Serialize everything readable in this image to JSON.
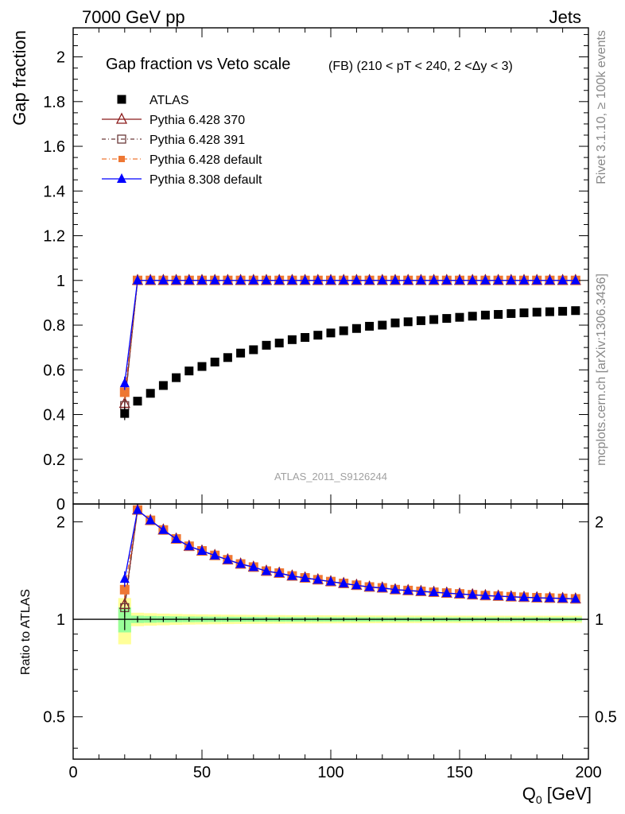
{
  "header": {
    "left": "7000 GeV pp",
    "right": "Jets"
  },
  "side_labels": {
    "rivet": "Rivet 3.1.10, ≥ 100k events",
    "mcplots": "mcplots.cern.ch [arXiv:1306.3436]"
  },
  "chart_data": {
    "type": "scatter",
    "title": "Gap fraction vs Veto scale",
    "subtitle": "(FB) (210 < pT < 240, 2 <Δy < 3)",
    "analysis": "ATLAS_2011_S9126244",
    "xlabel": "Q",
    "xlabel_sub": "0",
    "xlabel_unit": " [GeV]",
    "ylabel": "Gap fraction",
    "ratio_ylabel": "Ratio to ATLAS",
    "xlim": [
      0,
      200
    ],
    "ylim": [
      0,
      2.13
    ],
    "ratio_ylim": [
      0.37,
      2.27
    ],
    "x_ticks": [
      0,
      50,
      100,
      150,
      200
    ],
    "y_ticks": [
      0,
      0.2,
      0.4,
      0.6,
      0.8,
      1,
      1.2,
      1.4,
      1.6,
      1.8,
      2
    ],
    "y_tick_labels": [
      "0",
      "0.2",
      "0.4",
      "0.6",
      "0.8",
      "1",
      "1.2",
      "1.4",
      "1.6",
      "1.8",
      "2"
    ],
    "ratio_ticks": [
      0.5,
      1,
      2
    ],
    "ratio_tick_labels": [
      "0.5",
      "1",
      "2"
    ],
    "x": [
      20,
      25,
      30,
      35,
      40,
      45,
      50,
      55,
      60,
      65,
      70,
      75,
      80,
      85,
      90,
      95,
      100,
      105,
      110,
      115,
      120,
      125,
      130,
      135,
      140,
      145,
      150,
      155,
      160,
      165,
      170,
      175,
      180,
      185,
      190,
      195
    ],
    "data": {
      "name": "ATLAS",
      "values": [
        0.405,
        0.46,
        0.495,
        0.53,
        0.565,
        0.595,
        0.615,
        0.635,
        0.655,
        0.675,
        0.69,
        0.71,
        0.72,
        0.735,
        0.745,
        0.755,
        0.765,
        0.775,
        0.785,
        0.795,
        0.8,
        0.81,
        0.815,
        0.82,
        0.825,
        0.83,
        0.835,
        0.84,
        0.845,
        0.848,
        0.852,
        0.855,
        0.858,
        0.86,
        0.862,
        0.865
      ],
      "yerr": [
        0.03,
        0.01,
        0.01,
        0.01,
        0.01,
        0.01,
        0.01,
        0.01,
        0.01,
        0.01,
        0.01,
        0.01,
        0.01,
        0.01,
        0.01,
        0.01,
        0.01,
        0.01,
        0.01,
        0.01,
        0.01,
        0.01,
        0.01,
        0.01,
        0.01,
        0.01,
        0.01,
        0.01,
        0.01,
        0.01,
        0.01,
        0.01,
        0.01,
        0.01,
        0.01,
        0.01
      ],
      "color": "#000000"
    },
    "series": [
      {
        "name": "Pythia 6.428 370",
        "color": "#8b1a1a",
        "marker": "triangle-open",
        "dash": "",
        "first_value": 0.45,
        "first_err": 0.03,
        "plateau": 1.0
      },
      {
        "name": "Pythia 6.428 391",
        "color": "#6b3a3a",
        "marker": "square-open",
        "dash": "5,3,1,3",
        "first_value": 0.44,
        "first_err": 0.03,
        "plateau": 1.0
      },
      {
        "name": "Pythia 6.428 default",
        "color": "#ee7733",
        "marker": "square-filled",
        "dash": "6,3,1,3",
        "first_value": 0.5,
        "first_err": 0.03,
        "plateau": 1.0
      },
      {
        "name": "Pythia 8.308 default",
        "color": "#0000ff",
        "marker": "triangle-filled",
        "dash": "",
        "first_value": 0.54,
        "first_err": 0.03,
        "plateau": 1.0
      }
    ],
    "band_colors": {
      "outer": "#ffff99",
      "inner": "#99ff99"
    },
    "grid": false,
    "legend_position": "top-left"
  }
}
